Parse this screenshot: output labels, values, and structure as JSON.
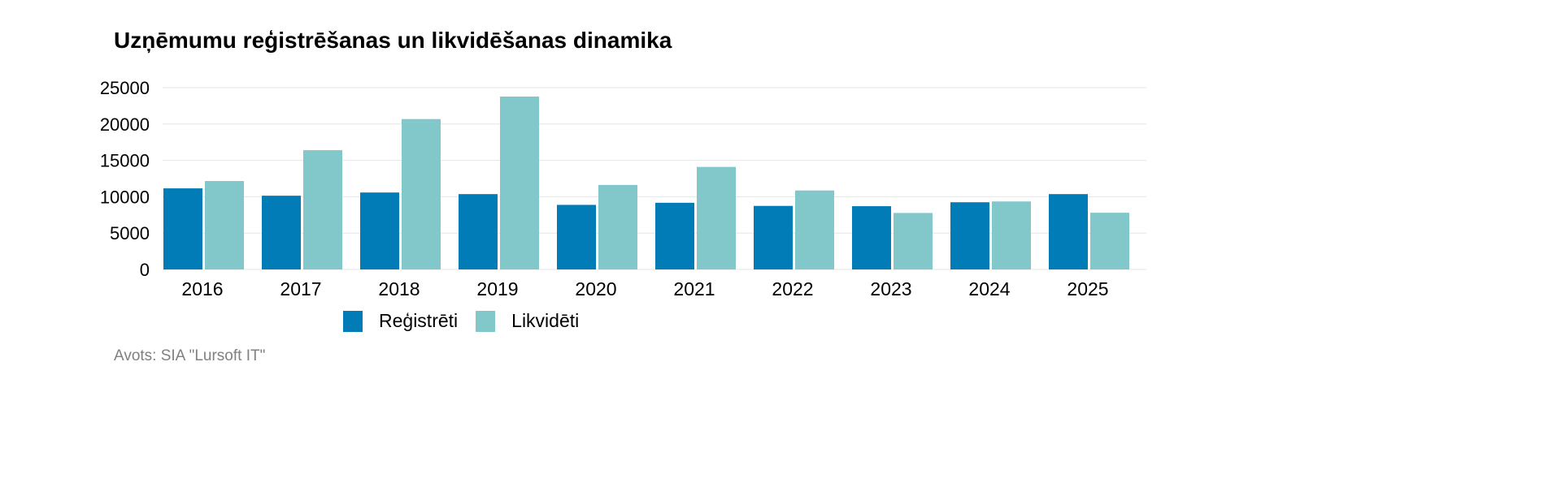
{
  "chart_data": {
    "type": "bar",
    "title": "Uzņēmumu reģistrēšanas un likvidēšanas dinamika",
    "categories": [
      "2016",
      "2017",
      "2018",
      "2019",
      "2020",
      "2021",
      "2022",
      "2023",
      "2024",
      "2025"
    ],
    "series": [
      {
        "name": "Reģistrēti",
        "color": "#017cb6",
        "values": [
          11150,
          10140,
          10580,
          10360,
          8880,
          9170,
          8740,
          8700,
          9240,
          10360
        ]
      },
      {
        "name": "Likvidēti",
        "color": "#82c8cb",
        "values": [
          12160,
          16400,
          20680,
          23780,
          11620,
          14100,
          10860,
          7770,
          9350,
          7800
        ]
      }
    ],
    "yticks": [
      "0",
      "5000",
      "10000",
      "15000",
      "20000",
      "25000"
    ],
    "ylim": [
      0,
      25000
    ],
    "xlabel": "",
    "ylabel": "",
    "grid": true,
    "legend": "bottom",
    "source": "Avots: SIA \"Lursoft IT\""
  }
}
